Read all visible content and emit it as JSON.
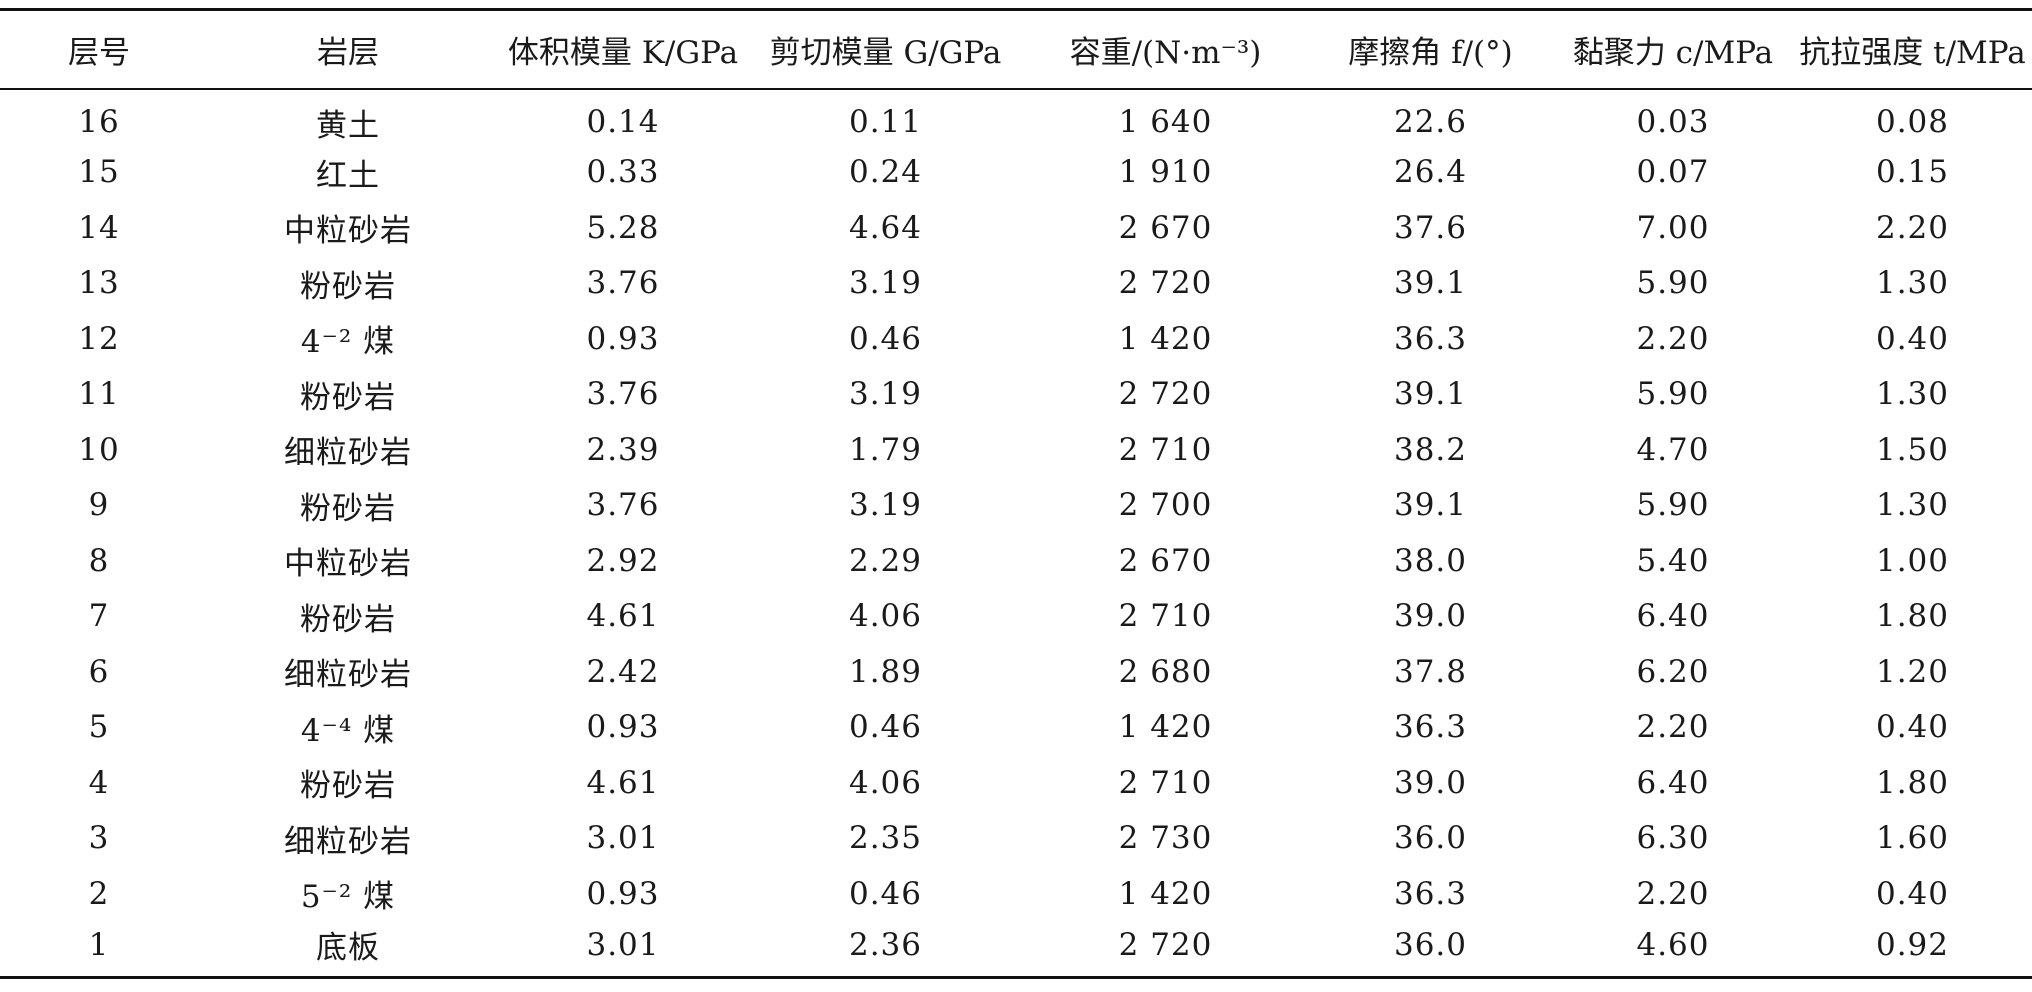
{
  "table": {
    "headers": [
      "层号",
      "岩层",
      "体积模量 K/GPa",
      "剪切模量 G/GPa",
      "容重/(N·m⁻³)",
      "摩擦角 f/(°)",
      "黏聚力 c/MPa",
      "抗拉强度 t/MPa"
    ],
    "rows": [
      [
        "16",
        "黄土",
        "0.14",
        "0.11",
        "1 640",
        "22.6",
        "0.03",
        "0.08"
      ],
      [
        "15",
        "红土",
        "0.33",
        "0.24",
        "1 910",
        "26.4",
        "0.07",
        "0.15"
      ],
      [
        "14",
        "中粒砂岩",
        "5.28",
        "4.64",
        "2 670",
        "37.6",
        "7.00",
        "2.20"
      ],
      [
        "13",
        "粉砂岩",
        "3.76",
        "3.19",
        "2 720",
        "39.1",
        "5.90",
        "1.30"
      ],
      [
        "12",
        "4⁻² 煤",
        "0.93",
        "0.46",
        "1 420",
        "36.3",
        "2.20",
        "0.40"
      ],
      [
        "11",
        "粉砂岩",
        "3.76",
        "3.19",
        "2 720",
        "39.1",
        "5.90",
        "1.30"
      ],
      [
        "10",
        "细粒砂岩",
        "2.39",
        "1.79",
        "2 710",
        "38.2",
        "4.70",
        "1.50"
      ],
      [
        "9",
        "粉砂岩",
        "3.76",
        "3.19",
        "2 700",
        "39.1",
        "5.90",
        "1.30"
      ],
      [
        "8",
        "中粒砂岩",
        "2.92",
        "2.29",
        "2 670",
        "38.0",
        "5.40",
        "1.00"
      ],
      [
        "7",
        "粉砂岩",
        "4.61",
        "4.06",
        "2 710",
        "39.0",
        "6.40",
        "1.80"
      ],
      [
        "6",
        "细粒砂岩",
        "2.42",
        "1.89",
        "2 680",
        "37.8",
        "6.20",
        "1.20"
      ],
      [
        "5",
        "4⁻⁴ 煤",
        "0.93",
        "0.46",
        "1 420",
        "36.3",
        "2.20",
        "0.40"
      ],
      [
        "4",
        "粉砂岩",
        "4.61",
        "4.06",
        "2 710",
        "39.0",
        "6.40",
        "1.80"
      ],
      [
        "3",
        "细粒砂岩",
        "3.01",
        "2.35",
        "2 730",
        "36.0",
        "6.30",
        "1.60"
      ],
      [
        "2",
        "5⁻² 煤",
        "0.93",
        "0.46",
        "1 420",
        "36.3",
        "2.20",
        "0.40"
      ],
      [
        "1",
        "底板",
        "3.01",
        "2.36",
        "2 720",
        "36.0",
        "4.60",
        "0.92"
      ]
    ]
  }
}
